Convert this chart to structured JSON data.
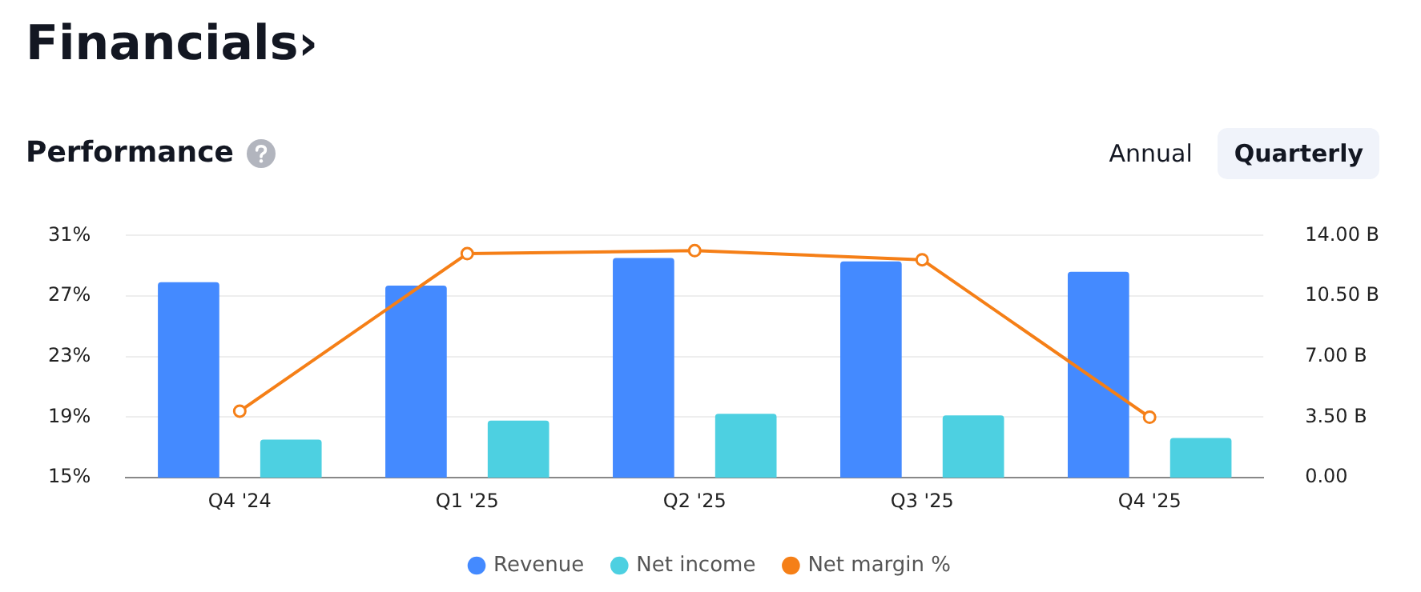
{
  "chart_data": {
    "type": "bar",
    "title": "Financials›",
    "subtitle": "Performance",
    "annotations": [
      "Annual",
      "Quarterly"
    ],
    "categories": [
      "Q4 '24",
      "Q1 '25",
      "Q2 '25",
      "Q3 '25",
      "Q4 '25"
    ],
    "series": [
      {
        "name": "Revenue",
        "axis": "y2",
        "color": "#448aff",
        "values": [
          11.3,
          11.1,
          12.7,
          12.5,
          11.9
        ]
      },
      {
        "name": "Net income",
        "axis": "y2",
        "color": "#4dd0e1",
        "values": [
          2.2,
          3.3,
          3.7,
          3.6,
          2.3
        ]
      },
      {
        "name": "Net margin %",
        "type": "line",
        "axis": "y",
        "color": "#f57f17",
        "values": [
          19.4,
          29.8,
          30.0,
          29.4,
          19.0
        ]
      }
    ],
    "ylim": [
      15,
      31
    ],
    "yticks": [
      {
        "value": 15,
        "label": "15%"
      },
      {
        "value": 19,
        "label": "19%"
      },
      {
        "value": 23,
        "label": "23%"
      },
      {
        "value": 27,
        "label": "27%"
      },
      {
        "value": 31,
        "label": "31%"
      }
    ],
    "y2lim": [
      0,
      14
    ],
    "y2ticks": [
      {
        "value": 0,
        "label": "0.00"
      },
      {
        "value": 3.5,
        "label": "3.50 B"
      },
      {
        "value": 7,
        "label": "7.00 B"
      },
      {
        "value": 10.5,
        "label": "10.50 B"
      },
      {
        "value": 14,
        "label": "14.00 B"
      }
    ],
    "grid": "y",
    "legend": "bottom",
    "marker": "circle",
    "line_style": "solid"
  }
}
